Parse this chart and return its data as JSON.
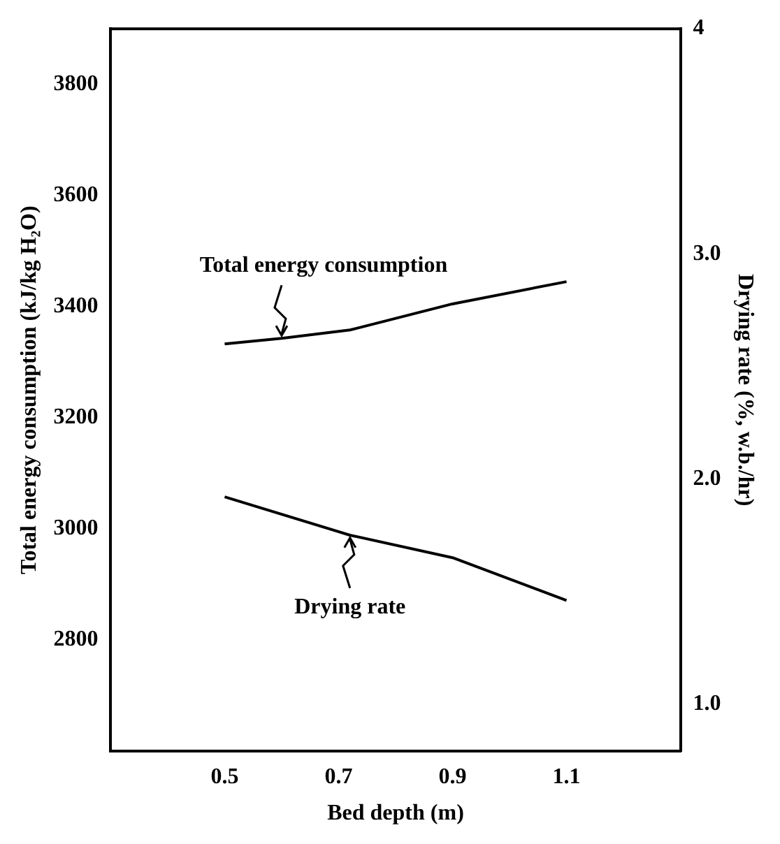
{
  "chart_data": {
    "type": "line",
    "xlabel": "Bed depth (m)",
    "ylabel": "Total energy consumption (kJ/kg H₂O)",
    "y2label": "Drying rate (%, w.b./hr)",
    "xlim": [
      0.3,
      1.3
    ],
    "xticks": [
      0.5,
      0.7,
      0.9,
      1.1
    ],
    "ylim": [
      2600,
      3900
    ],
    "yticks": [
      2800,
      3000,
      3200,
      3400,
      3600,
      3800
    ],
    "y2lim": [
      0.79,
      4
    ],
    "y2ticks": [
      {
        "value": 1,
        "label": "1.0"
      },
      {
        "value": 2,
        "label": "2.0"
      },
      {
        "value": 3,
        "label": "3.0"
      },
      4
    ],
    "series": [
      {
        "color": "#000000",
        "x": [
          0.5,
          0.6,
          0.72,
          0.9,
          1.1
        ],
        "values": [
          3333,
          3343,
          3358,
          3405,
          3445
        ]
      },
      {
        "color": "#000000",
        "axis": "y2",
        "x": [
          0.5,
          0.72,
          0.9,
          1.1
        ],
        "values": [
          1.92,
          1.75,
          1.65,
          1.46
        ]
      }
    ],
    "annotations": [
      {
        "text": "Total energy consumption",
        "x": 0.6,
        "y": 3343
      },
      {
        "text": "Drying rate",
        "x": 0.72,
        "y": 2989
      }
    ],
    "grid": false,
    "legend": false,
    "marker": "none",
    "line_style": "solid"
  }
}
